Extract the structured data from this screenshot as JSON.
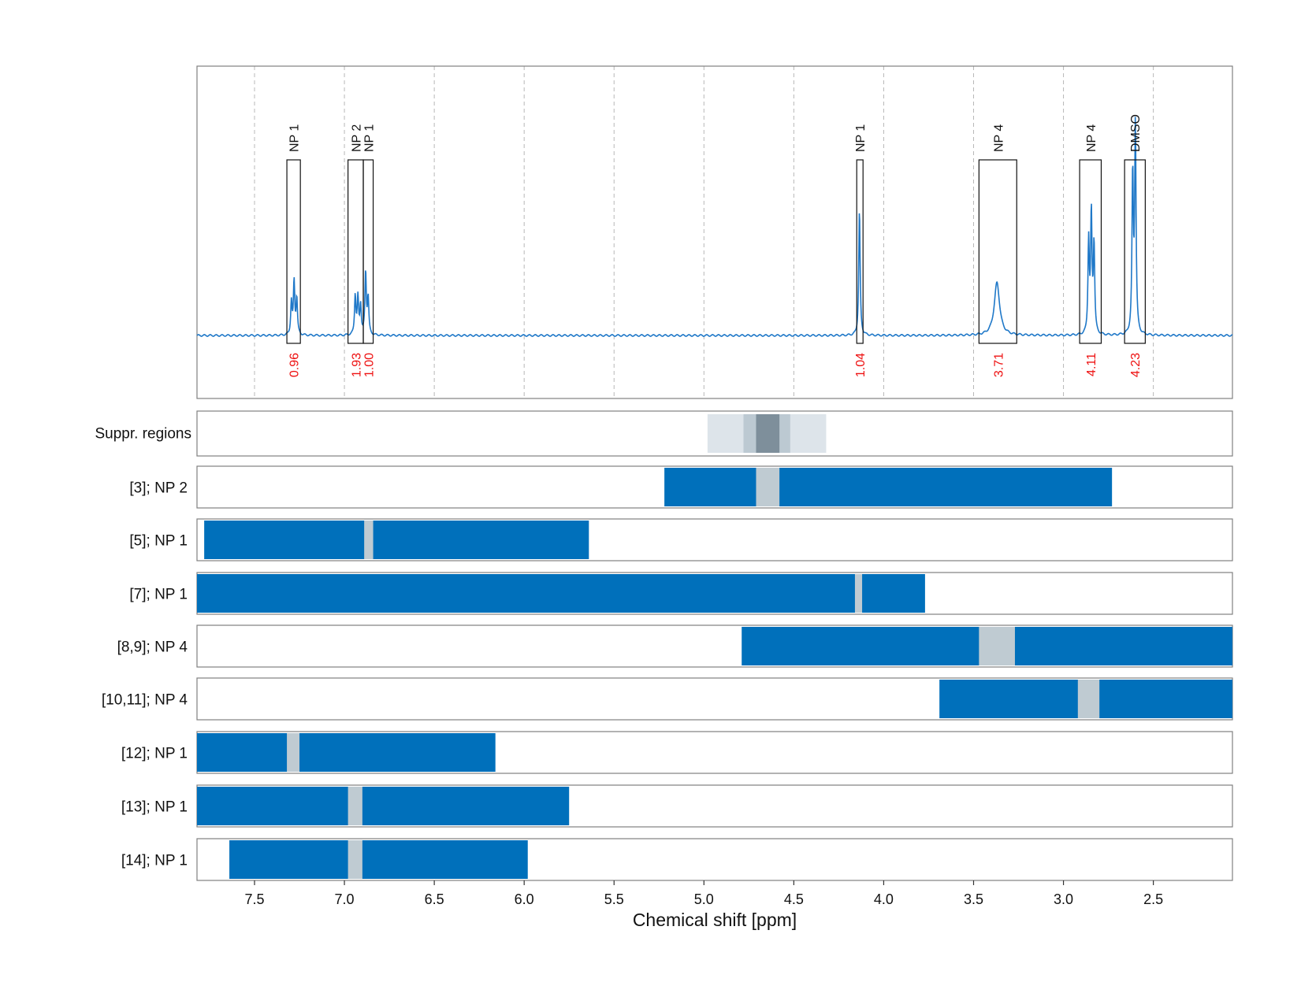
{
  "chart_data": {
    "type": "line",
    "xlabel": "Chemical shift [ppm]",
    "xlim": [
      7.82,
      2.06
    ],
    "x_reversed": true,
    "x_ticks": [
      "7.5",
      "7.0",
      "6.5",
      "6.0",
      "5.5",
      "5.0",
      "4.5",
      "4.0",
      "3.5",
      "3.0",
      "2.5"
    ],
    "x_tick_values": [
      7.5,
      7.0,
      6.5,
      6.0,
      5.5,
      5.0,
      4.5,
      4.0,
      3.5,
      3.0,
      2.5
    ],
    "grid": "vertical-dashed",
    "spectrum": {
      "color": "#1f78c8",
      "peaks": [
        {
          "ppm": 7.295,
          "height": 0.1
        },
        {
          "ppm": 7.28,
          "height": 0.16
        },
        {
          "ppm": 7.265,
          "height": 0.11
        },
        {
          "ppm": 6.94,
          "height": 0.12
        },
        {
          "ppm": 6.925,
          "height": 0.11
        },
        {
          "ppm": 6.91,
          "height": 0.09
        },
        {
          "ppm": 6.882,
          "height": 0.19
        },
        {
          "ppm": 6.868,
          "height": 0.11
        },
        {
          "ppm": 4.135,
          "height": 0.38
        },
        {
          "ppm": 3.37,
          "height": 0.16
        },
        {
          "ppm": 2.86,
          "height": 0.28
        },
        {
          "ppm": 2.845,
          "height": 0.36
        },
        {
          "ppm": 2.83,
          "height": 0.27
        },
        {
          "ppm": 2.615,
          "height": 0.48
        },
        {
          "ppm": 2.6,
          "height": 0.63
        }
      ]
    },
    "integration_regions": [
      {
        "label": "NP 1",
        "from": 7.32,
        "to": 7.245,
        "integral": "0.96"
      },
      {
        "label": "NP 2",
        "from": 6.98,
        "to": 6.895,
        "integral": "1.93"
      },
      {
        "label": "NP 1",
        "from": 6.895,
        "to": 6.84,
        "integral": "1.00"
      },
      {
        "label": "NP 1",
        "from": 4.15,
        "to": 4.115,
        "integral": "1.04"
      },
      {
        "label": "NP 4",
        "from": 3.47,
        "to": 3.26,
        "integral": "3.71"
      },
      {
        "label": "NP 4",
        "from": 2.91,
        "to": 2.79,
        "integral": "4.11"
      },
      {
        "label": "DMSO",
        "from": 2.66,
        "to": 2.545,
        "integral": "4.23"
      }
    ],
    "suppression": {
      "label": "Suppr. regions",
      "bands": [
        {
          "from": 4.98,
          "to": 4.32,
          "color": "#dde4ea"
        },
        {
          "from": 4.78,
          "to": 4.52,
          "color": "#bcc9d2"
        },
        {
          "from": 4.71,
          "to": 4.58,
          "color": "#7e8f9b"
        }
      ]
    },
    "bar_color": "#0070bb",
    "gap_color": "#bfcbd2",
    "tracks": [
      {
        "label": "[3]; NP 2",
        "from": 5.22,
        "to": 2.73,
        "gap": [
          4.71,
          4.58
        ]
      },
      {
        "label": "[5]; NP 1",
        "from": 7.78,
        "to": 5.64,
        "gap": [
          6.89,
          6.84
        ]
      },
      {
        "label": "[7]; NP 1",
        "from": 7.82,
        "to": 3.77,
        "gap": [
          4.16,
          4.12
        ]
      },
      {
        "label": "[8,9]; NP 4",
        "from": 4.79,
        "to": 2.06,
        "gap": [
          3.47,
          3.27
        ]
      },
      {
        "label": "[10,11]; NP 4",
        "from": 3.69,
        "to": 2.06,
        "gap": [
          2.92,
          2.8
        ]
      },
      {
        "label": "[12]; NP 1",
        "from": 7.82,
        "to": 6.16,
        "gap": [
          7.32,
          7.25
        ]
      },
      {
        "label": "[13]; NP 1",
        "from": 7.82,
        "to": 5.75,
        "gap": [
          6.98,
          6.9
        ]
      },
      {
        "label": "[14]; NP 1",
        "from": 7.64,
        "to": 5.98,
        "gap": [
          6.98,
          6.9
        ]
      }
    ]
  }
}
